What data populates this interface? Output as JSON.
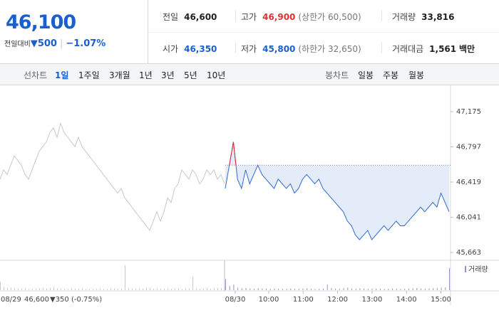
{
  "header": {
    "price": "46,100",
    "change_caption": "전일대비",
    "change_arrow": "▼",
    "change": "500",
    "change_pct": "−1.07%",
    "stats": [
      {
        "label": "전일",
        "value": "46,600"
      },
      {
        "label": "고가",
        "value": "46,900",
        "extra": "(상한가 60,500)"
      },
      {
        "label": "거래량",
        "value": "33,816"
      },
      {
        "label": "시가",
        "value": "46,350"
      },
      {
        "label": "저가",
        "value": "45,800",
        "extra": "(하한가 32,650)"
      },
      {
        "label": "거래대금",
        "value": "1,561",
        "unit": "백만"
      }
    ]
  },
  "tabs": {
    "line_caption": "선차트",
    "line": [
      "1일",
      "1주일",
      "3개월",
      "1년",
      "3년",
      "5년",
      "10년"
    ],
    "candle_caption": "봉차트",
    "candle": [
      "일봉",
      "주봉",
      "월봉"
    ]
  },
  "chart_data": {
    "type": "line",
    "ylim": [
      45587,
      47419
    ],
    "yticks": [
      {
        "value": 47175,
        "label": "47,175"
      },
      {
        "value": 46797,
        "label": "46,797"
      },
      {
        "value": 46419,
        "label": "46,419"
      },
      {
        "value": 46041,
        "label": "46,041"
      },
      {
        "value": 45663,
        "label": "45,663"
      }
    ],
    "reference": 46600,
    "xtick_labels": [
      "08/30",
      "10:00",
      "11:00",
      "12:00",
      "13:00",
      "14:00",
      "15:00"
    ],
    "prev_day": {
      "date": "08/29",
      "close": "46,600",
      "change": "▼350 (-0.75%)"
    },
    "volume_label": "거래량",
    "series": [
      {
        "name": "08/29",
        "color": "#c8c8c8",
        "values": [
          46450,
          46550,
          46500,
          46600,
          46700,
          46650,
          46600,
          46500,
          46450,
          46550,
          46650,
          46750,
          46800,
          46850,
          46950,
          47000,
          46900,
          47050,
          46950,
          46900,
          46850,
          46800,
          46900,
          46800,
          46750,
          46700,
          46650,
          46600,
          46550,
          46500,
          46450,
          46400,
          46350,
          46300,
          46350,
          46250,
          46200,
          46150,
          46100,
          46050,
          46000,
          45950,
          45900,
          46000,
          46100,
          46000,
          46100,
          46250,
          46200,
          46350,
          46400,
          46550,
          46500,
          46450,
          46550,
          46500,
          46400,
          46450,
          46550,
          46500,
          46550,
          46450,
          46500,
          46400
        ],
        "volume": [
          300,
          120,
          80,
          90,
          60,
          70,
          50,
          60,
          40,
          50,
          60,
          70,
          80,
          60,
          90,
          120,
          70,
          60,
          50,
          40,
          50,
          60,
          40,
          50,
          40,
          30,
          40,
          50,
          40,
          30,
          40,
          50,
          60,
          40,
          50,
          900,
          60,
          70,
          50,
          40,
          60,
          80,
          70,
          50,
          40,
          50,
          60,
          40,
          50,
          60,
          70,
          40,
          50,
          60,
          500,
          40,
          50,
          60,
          70,
          50,
          60,
          80,
          90,
          150
        ],
        "volume_color": "#c8c8c8"
      },
      {
        "name": "08/30",
        "color": "#2e6bd1",
        "values": [
          46350,
          46600,
          46850,
          46450,
          46350,
          46550,
          46400,
          46500,
          46600,
          46500,
          46450,
          46400,
          46350,
          46450,
          46400,
          46350,
          46400,
          46300,
          46350,
          46450,
          46500,
          46450,
          46400,
          46450,
          46350,
          46300,
          46250,
          46200,
          46150,
          46100,
          46000,
          45950,
          45850,
          45800,
          45850,
          45900,
          45800,
          45850,
          45900,
          45950,
          45900,
          45950,
          46000,
          45950,
          45950,
          46000,
          46050,
          46100,
          46150,
          46100,
          46150,
          46200,
          46150,
          46300,
          46200,
          46100
        ],
        "volume": [
          400,
          150,
          200,
          90,
          70,
          80,
          60,
          50,
          70,
          60,
          50,
          40,
          60,
          50,
          40,
          50,
          60,
          40,
          50,
          60,
          70,
          50,
          40,
          50,
          60,
          200,
          80,
          60,
          50,
          70,
          90,
          60,
          50,
          70,
          60,
          40,
          50,
          60,
          50,
          40,
          50,
          60,
          50,
          40,
          50,
          60,
          70,
          80,
          60,
          50,
          60,
          70,
          80,
          90,
          100,
          800
        ],
        "volume_color": "#9b8fc7"
      }
    ]
  }
}
